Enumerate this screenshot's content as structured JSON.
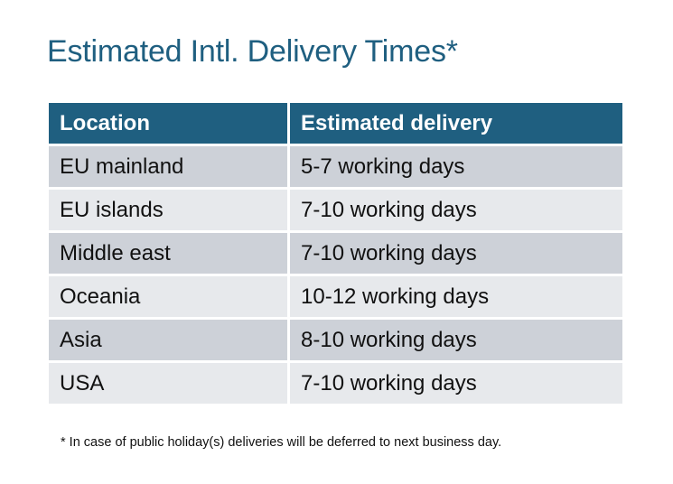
{
  "title": "Estimated Intl. Delivery Times*",
  "table": {
    "headers": [
      "Location",
      "Estimated delivery"
    ],
    "rows": [
      [
        "EU mainland",
        "5-7 working days"
      ],
      [
        "EU islands",
        "7-10 working days"
      ],
      [
        "Middle east",
        "7-10 working days"
      ],
      [
        "Oceania",
        "10-12 working days"
      ],
      [
        "Asia",
        "8-10 working days"
      ],
      [
        "USA",
        "7-10 working days"
      ]
    ]
  },
  "footnote": "* In case of public holiday(s) deliveries will be deferred to next business day.",
  "colors": {
    "header": "#1f5f80",
    "row_odd": "#cdd1d8",
    "row_even": "#e7e9ec",
    "title": "#1f5f80"
  }
}
